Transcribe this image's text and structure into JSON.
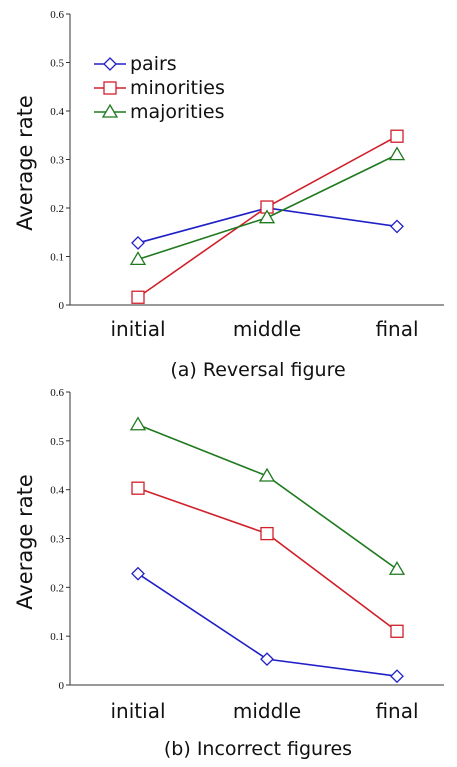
{
  "chart_data": [
    {
      "type": "line",
      "title": "",
      "caption": "(a) Reversal figure",
      "xlabel": "",
      "ylabel": "Average rate",
      "categories": [
        "initial",
        "middle",
        "final"
      ],
      "ylim": [
        0,
        0.6
      ],
      "yticks": [
        "0",
        "0.1",
        "0.2",
        "0.3",
        "0.4",
        "0.5",
        "0.6"
      ],
      "grid": false,
      "legend": "top-left",
      "series": [
        {
          "name": "pairs",
          "values": [
            0.128,
            0.2,
            0.162
          ],
          "color": "#2020c8",
          "marker": "diamond"
        },
        {
          "name": "minorities",
          "values": [
            0.016,
            0.202,
            0.348
          ],
          "color": "#d0202a",
          "marker": "square"
        },
        {
          "name": "majorities",
          "values": [
            0.094,
            0.18,
            0.31
          ],
          "color": "#1f7a1f",
          "marker": "triangle"
        }
      ]
    },
    {
      "type": "line",
      "title": "",
      "caption": "(b) Incorrect figures",
      "xlabel": "",
      "ylabel": "Average rate",
      "categories": [
        "initial",
        "middle",
        "final"
      ],
      "ylim": [
        0,
        0.6
      ],
      "yticks": [
        "0",
        "0.1",
        "0.2",
        "0.3",
        "0.4",
        "0.5",
        "0.6"
      ],
      "grid": false,
      "legend": "none",
      "series": [
        {
          "values": [
            0.228,
            0.053,
            0.018
          ],
          "color": "#2020c8",
          "marker": "diamond"
        },
        {
          "values": [
            0.403,
            0.31,
            0.11
          ],
          "color": "#d0202a",
          "marker": "square"
        },
        {
          "values": [
            0.533,
            0.428,
            0.237
          ],
          "color": "#1f7a1f",
          "marker": "triangle"
        }
      ]
    }
  ]
}
